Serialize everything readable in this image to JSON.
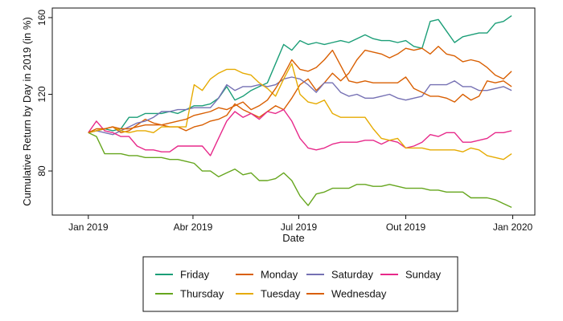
{
  "chart_data": {
    "type": "line",
    "title": "",
    "xlabel": "Date",
    "ylabel": "Cumulative Return by Day in 2019 (in %)",
    "x_range": [
      "2018-12-01",
      "2020-01-20"
    ],
    "ylim": [
      57,
      165
    ],
    "x_ticks": [
      {
        "date": "2019-01-01",
        "label": "Jan 2019"
      },
      {
        "date": "2019-04-01",
        "label": "Abr 2019"
      },
      {
        "date": "2019-07-01",
        "label": "Jul 2019"
      },
      {
        "date": "2019-10-01",
        "label": "Out 2019"
      },
      {
        "date": "2020-01-01",
        "label": "Jan 2020"
      }
    ],
    "y_ticks": [
      80,
      120,
      160
    ],
    "grid": false,
    "legend_position": "bottom",
    "dates": [
      "2019-01-01",
      "2019-01-08",
      "2019-01-15",
      "2019-01-22",
      "2019-01-29",
      "2019-02-05",
      "2019-02-12",
      "2019-02-19",
      "2019-02-26",
      "2019-03-05",
      "2019-03-12",
      "2019-03-19",
      "2019-03-26",
      "2019-04-02",
      "2019-04-09",
      "2019-04-16",
      "2019-04-23",
      "2019-04-30",
      "2019-05-07",
      "2019-05-14",
      "2019-05-21",
      "2019-05-28",
      "2019-06-04",
      "2019-06-11",
      "2019-06-18",
      "2019-06-25",
      "2019-07-02",
      "2019-07-09",
      "2019-07-16",
      "2019-07-23",
      "2019-07-30",
      "2019-08-06",
      "2019-08-13",
      "2019-08-20",
      "2019-08-27",
      "2019-09-03",
      "2019-09-10",
      "2019-09-17",
      "2019-09-24",
      "2019-10-01",
      "2019-10-08",
      "2019-10-15",
      "2019-10-22",
      "2019-10-29",
      "2019-11-05",
      "2019-11-12",
      "2019-11-19",
      "2019-11-26",
      "2019-12-03",
      "2019-12-10",
      "2019-12-17",
      "2019-12-24",
      "2019-12-31"
    ],
    "series": [
      {
        "name": "Friday",
        "color": "#1b9e77",
        "values": [
          100,
          101,
          102,
          101,
          102,
          108,
          108,
          110,
          110,
          110,
          111,
          110,
          112,
          114,
          114,
          115,
          118,
          124,
          117,
          119,
          122,
          124,
          126,
          136,
          146,
          143,
          148,
          146,
          147,
          146,
          147,
          148,
          147,
          149,
          151,
          149,
          148,
          148,
          147,
          148,
          145,
          144,
          158,
          159,
          153,
          147,
          150,
          151,
          152,
          152,
          157,
          158,
          161
        ]
      },
      {
        "name": "Monday",
        "color": "#d95f02",
        "values": [
          100,
          101,
          102,
          103,
          100,
          101,
          104,
          107,
          105,
          104,
          103,
          103,
          101,
          103,
          104,
          106,
          107,
          109,
          115,
          112,
          110,
          108,
          111,
          114,
          112,
          118,
          125,
          128,
          122,
          126,
          131,
          127,
          131,
          138,
          143,
          142,
          141,
          139,
          141,
          144,
          143,
          144,
          141,
          145,
          141,
          140,
          137,
          138,
          137,
          134,
          130,
          128,
          132
        ]
      },
      {
        "name": "Saturday",
        "color": "#7570b3",
        "values": [
          100,
          101,
          100,
          99,
          101,
          103,
          105,
          106,
          108,
          111,
          111,
          112,
          112,
          113,
          113,
          113,
          118,
          125,
          122,
          124,
          124,
          125,
          124,
          125,
          128,
          129,
          128,
          125,
          121,
          126,
          126,
          121,
          119,
          120,
          118,
          118,
          119,
          120,
          118,
          117,
          118,
          119,
          125,
          125,
          125,
          127,
          124,
          124,
          122,
          122,
          123,
          124,
          122
        ]
      },
      {
        "name": "Sunday",
        "color": "#e7298a",
        "values": [
          100,
          106,
          101,
          100,
          98,
          98,
          93,
          91,
          91,
          90,
          90,
          93,
          93,
          93,
          93,
          88,
          97,
          106,
          111,
          108,
          110,
          107,
          111,
          110,
          112,
          106,
          97,
          92,
          91,
          92,
          94,
          95,
          95,
          95,
          96,
          96,
          94,
          96,
          95,
          92,
          93,
          95,
          99,
          98,
          100,
          100,
          95,
          95,
          96,
          97,
          100,
          100,
          101
        ]
      },
      {
        "name": "Thursday",
        "color": "#66a61e",
        "values": [
          100,
          98,
          89,
          89,
          89,
          88,
          88,
          87,
          87,
          87,
          86,
          86,
          85,
          84,
          80,
          80,
          77,
          79,
          81,
          78,
          79,
          75,
          75,
          76,
          79,
          75,
          67,
          62,
          68,
          69,
          71,
          71,
          71,
          73,
          73,
          72,
          72,
          73,
          72,
          71,
          71,
          71,
          70,
          70,
          69,
          69,
          69,
          66,
          66,
          66,
          65,
          63,
          61
        ]
      },
      {
        "name": "Tuesday",
        "color": "#e6ab02",
        "values": [
          100,
          101,
          102,
          103,
          101,
          100,
          101,
          101,
          100,
          103,
          103,
          103,
          103,
          125,
          122,
          128,
          131,
          133,
          133,
          131,
          130,
          126,
          123,
          119,
          128,
          136,
          120,
          116,
          115,
          117,
          110,
          108,
          108,
          108,
          108,
          102,
          97,
          96,
          97,
          92,
          92,
          92,
          91,
          91,
          91,
          91,
          90,
          92,
          91,
          88,
          87,
          86,
          89
        ]
      },
      {
        "name": "Wednesday",
        "color": "#d95f02",
        "values": [
          100,
          102,
          102,
          103,
          102,
          102,
          103,
          104,
          104,
          104,
          105,
          106,
          107,
          109,
          110,
          111,
          113,
          112,
          114,
          116,
          112,
          114,
          117,
          123,
          130,
          138,
          133,
          132,
          134,
          138,
          143,
          135,
          127,
          126,
          127,
          126,
          126,
          126,
          126,
          129,
          123,
          121,
          119,
          119,
          118,
          116,
          120,
          117,
          119,
          127,
          126,
          127,
          124
        ]
      }
    ]
  }
}
